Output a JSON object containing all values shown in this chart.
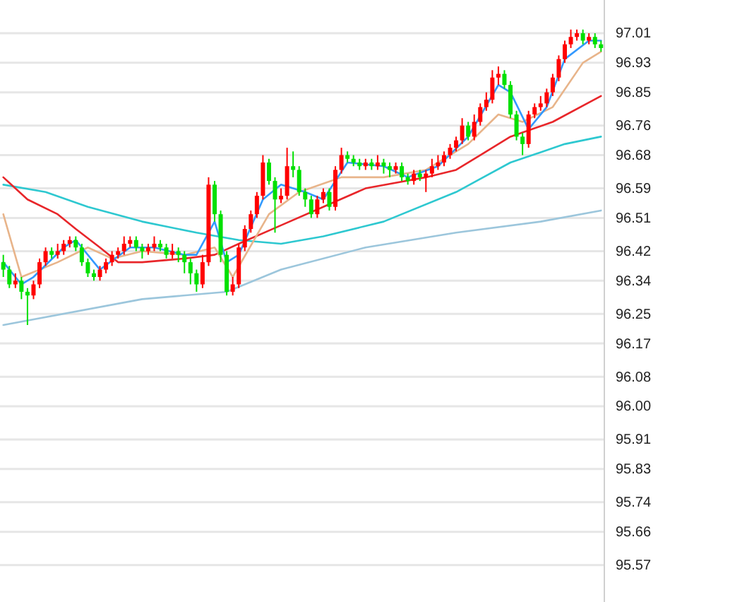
{
  "chart_data": {
    "type": "candlestick",
    "categories": [
      null,
      null,
      null,
      null,
      null,
      null,
      null,
      null,
      null,
      null,
      null,
      null,
      null,
      null,
      null,
      null,
      null,
      null,
      null,
      null,
      null,
      null,
      null,
      null,
      null,
      null,
      null,
      null,
      null,
      null,
      null,
      null,
      null,
      null,
      null,
      null,
      null,
      null,
      null,
      null,
      null,
      null,
      null,
      null,
      null,
      null,
      null,
      null,
      null,
      null,
      null,
      null,
      null,
      null,
      null,
      null,
      null,
      null,
      null,
      null,
      null,
      null,
      null,
      null,
      null,
      null,
      null,
      null,
      null,
      null,
      null,
      null,
      null,
      null,
      null,
      null,
      null,
      null,
      null,
      null,
      null,
      null,
      null,
      null,
      null,
      null,
      null,
      null,
      null,
      null,
      null,
      null,
      null,
      null,
      null,
      null,
      null,
      null,
      null,
      null
    ],
    "ohlc": [
      [
        96.39,
        96.41,
        96.35,
        96.37
      ],
      [
        96.37,
        96.38,
        96.32,
        96.33
      ],
      [
        96.33,
        96.36,
        96.32,
        96.34
      ],
      [
        96.34,
        96.35,
        96.29,
        96.31
      ],
      [
        96.31,
        96.32,
        96.22,
        96.3
      ],
      [
        96.3,
        96.34,
        96.29,
        96.33
      ],
      [
        96.33,
        96.4,
        96.32,
        96.39
      ],
      [
        96.39,
        96.43,
        96.38,
        96.42
      ],
      [
        96.42,
        96.43,
        96.4,
        96.41
      ],
      [
        96.41,
        96.44,
        96.4,
        96.42
      ],
      [
        96.42,
        96.45,
        96.41,
        96.44
      ],
      [
        96.44,
        96.46,
        96.43,
        96.45
      ],
      [
        96.45,
        96.46,
        96.42,
        96.43
      ],
      [
        96.43,
        96.44,
        96.38,
        96.39
      ],
      [
        96.39,
        96.4,
        96.35,
        96.36
      ],
      [
        96.36,
        96.37,
        96.34,
        96.35
      ],
      [
        96.35,
        96.38,
        96.34,
        96.37
      ],
      [
        96.37,
        96.4,
        96.36,
        96.39
      ],
      [
        96.39,
        96.42,
        96.38,
        96.41
      ],
      [
        96.41,
        96.43,
        96.4,
        96.42
      ],
      [
        96.42,
        96.46,
        96.41,
        96.44
      ],
      [
        96.44,
        96.46,
        96.43,
        96.45
      ],
      [
        96.45,
        96.46,
        96.42,
        96.43
      ],
      [
        96.43,
        96.44,
        96.4,
        96.42
      ],
      [
        96.42,
        96.44,
        96.41,
        96.43
      ],
      [
        96.43,
        96.46,
        96.42,
        96.44
      ],
      [
        96.44,
        96.45,
        96.42,
        96.43
      ],
      [
        96.43,
        96.44,
        96.4,
        96.41
      ],
      [
        96.41,
        96.44,
        96.4,
        96.42
      ],
      [
        96.42,
        96.43,
        96.39,
        96.41
      ],
      [
        96.41,
        96.42,
        96.36,
        96.39
      ],
      [
        96.39,
        96.4,
        96.33,
        96.36
      ],
      [
        96.36,
        96.37,
        96.31,
        96.33
      ],
      [
        96.33,
        96.41,
        96.32,
        96.39
      ],
      [
        96.39,
        96.62,
        96.38,
        96.6
      ],
      [
        96.6,
        96.61,
        96.5,
        96.52
      ],
      [
        96.52,
        96.53,
        96.39,
        96.41
      ],
      [
        96.41,
        96.42,
        96.3,
        96.31
      ],
      [
        96.31,
        96.35,
        96.3,
        96.33
      ],
      [
        96.33,
        96.44,
        96.32,
        96.43
      ],
      [
        96.43,
        96.49,
        96.42,
        96.48
      ],
      [
        96.48,
        96.53,
        96.47,
        96.52
      ],
      [
        96.52,
        96.58,
        96.51,
        96.57
      ],
      [
        96.57,
        96.68,
        96.56,
        96.66
      ],
      [
        96.66,
        96.67,
        96.6,
        96.61
      ],
      [
        96.61,
        96.62,
        96.47,
        96.56
      ],
      [
        96.56,
        96.59,
        96.55,
        96.57
      ],
      [
        96.57,
        96.7,
        96.56,
        96.65
      ],
      [
        96.65,
        96.69,
        96.62,
        96.64
      ],
      [
        96.64,
        96.65,
        96.57,
        96.58
      ],
      [
        96.58,
        96.59,
        96.54,
        96.56
      ],
      [
        96.56,
        96.57,
        96.51,
        96.52
      ],
      [
        96.52,
        96.57,
        96.51,
        96.56
      ],
      [
        96.56,
        96.59,
        96.55,
        96.58
      ],
      [
        96.58,
        96.59,
        96.53,
        96.54
      ],
      [
        96.54,
        96.65,
        96.53,
        96.64
      ],
      [
        96.64,
        96.7,
        96.63,
        96.68
      ],
      [
        96.68,
        96.69,
        96.66,
        96.67
      ],
      [
        96.67,
        96.68,
        96.65,
        96.66
      ],
      [
        96.66,
        96.67,
        96.64,
        96.65
      ],
      [
        96.65,
        96.67,
        96.64,
        96.66
      ],
      [
        96.66,
        96.67,
        96.64,
        96.65
      ],
      [
        96.65,
        96.68,
        96.64,
        96.66
      ],
      [
        96.66,
        96.67,
        96.63,
        96.65
      ],
      [
        96.65,
        96.66,
        96.62,
        96.64
      ],
      [
        96.64,
        96.66,
        96.63,
        96.65
      ],
      [
        96.65,
        96.66,
        96.61,
        96.62
      ],
      [
        96.62,
        96.63,
        96.6,
        96.61
      ],
      [
        96.61,
        96.64,
        96.6,
        96.63
      ],
      [
        96.63,
        96.64,
        96.61,
        96.62
      ],
      [
        96.62,
        96.64,
        96.58,
        96.63
      ],
      [
        96.63,
        96.67,
        96.62,
        96.65
      ],
      [
        96.65,
        96.68,
        96.64,
        96.66
      ],
      [
        96.66,
        96.69,
        96.65,
        96.68
      ],
      [
        96.68,
        96.71,
        96.67,
        96.7
      ],
      [
        96.7,
        96.73,
        96.69,
        96.72
      ],
      [
        96.72,
        96.78,
        96.71,
        96.76
      ],
      [
        96.76,
        96.77,
        96.72,
        96.73
      ],
      [
        96.73,
        96.79,
        96.72,
        96.77
      ],
      [
        96.77,
        96.82,
        96.76,
        96.81
      ],
      [
        96.81,
        96.85,
        96.8,
        96.83
      ],
      [
        96.83,
        96.91,
        96.82,
        96.89
      ],
      [
        96.89,
        96.92,
        96.87,
        96.9
      ],
      [
        96.9,
        96.91,
        96.86,
        96.87
      ],
      [
        96.87,
        96.88,
        96.78,
        96.79
      ],
      [
        96.79,
        96.8,
        96.72,
        96.73
      ],
      [
        96.73,
        96.74,
        96.68,
        96.71
      ],
      [
        96.71,
        96.8,
        96.7,
        96.79
      ],
      [
        96.79,
        96.82,
        96.78,
        96.81
      ],
      [
        96.81,
        96.84,
        96.8,
        96.82
      ],
      [
        96.82,
        96.86,
        96.81,
        96.85
      ],
      [
        96.85,
        96.9,
        96.84,
        96.89
      ],
      [
        96.89,
        96.95,
        96.88,
        96.94
      ],
      [
        96.94,
        96.99,
        96.93,
        96.98
      ],
      [
        96.98,
        97.02,
        96.97,
        97.0
      ],
      [
        97.0,
        97.02,
        96.99,
        97.01
      ],
      [
        97.01,
        97.02,
        96.98,
        96.99
      ],
      [
        96.99,
        97.01,
        96.98,
        97.0
      ],
      [
        97.0,
        97.01,
        96.97,
        96.98
      ],
      [
        96.98,
        96.99,
        96.96,
        96.97
      ]
    ],
    "series": [
      {
        "type": "line",
        "color": "#9cc6dc",
        "values": [
          96.22,
          null,
          null,
          null,
          null,
          null,
          null,
          null,
          null,
          null,
          null,
          null,
          null,
          null,
          null,
          null,
          null,
          null,
          null,
          null,
          null,
          null,
          null,
          96.29,
          null,
          null,
          null,
          null,
          null,
          null,
          null,
          null,
          null,
          null,
          null,
          null,
          null,
          96.31,
          null,
          null,
          null,
          null,
          null,
          null,
          null,
          null,
          96.37,
          null,
          null,
          null,
          null,
          null,
          null,
          null,
          null,
          null,
          null,
          null,
          null,
          null,
          96.43,
          null,
          null,
          null,
          null,
          null,
          null,
          null,
          null,
          null,
          null,
          null,
          null,
          null,
          null,
          96.47,
          null,
          null,
          null,
          null,
          null,
          null,
          null,
          null,
          null,
          null,
          null,
          null,
          null,
          96.5,
          null,
          null,
          null,
          null,
          null,
          null,
          null,
          null,
          null,
          96.53
        ]
      },
      {
        "type": "line",
        "color": "#2ec8d0",
        "values": [
          96.6,
          null,
          null,
          null,
          null,
          null,
          null,
          96.58,
          null,
          null,
          null,
          null,
          null,
          null,
          96.54,
          null,
          null,
          null,
          null,
          null,
          null,
          null,
          null,
          96.5,
          null,
          null,
          null,
          null,
          null,
          null,
          null,
          null,
          96.47,
          null,
          null,
          null,
          null,
          null,
          null,
          96.45,
          null,
          null,
          null,
          null,
          null,
          null,
          96.44,
          null,
          null,
          null,
          null,
          null,
          null,
          96.46,
          null,
          null,
          null,
          null,
          null,
          null,
          null,
          null,
          null,
          96.5,
          null,
          null,
          null,
          null,
          null,
          null,
          null,
          null,
          null,
          null,
          null,
          96.58,
          null,
          null,
          null,
          null,
          null,
          null,
          null,
          null,
          96.66,
          null,
          null,
          null,
          null,
          null,
          null,
          null,
          null,
          96.71,
          null,
          null,
          null,
          null,
          null,
          96.73
        ]
      },
      {
        "type": "line",
        "color": "#e8262a",
        "values": [
          96.62,
          null,
          null,
          null,
          96.56,
          null,
          null,
          null,
          null,
          96.52,
          null,
          null,
          96.48,
          null,
          null,
          null,
          96.43,
          null,
          null,
          96.39,
          null,
          null,
          null,
          96.39,
          null,
          null,
          null,
          null,
          null,
          null,
          96.4,
          null,
          null,
          null,
          null,
          96.41,
          null,
          null,
          null,
          96.44,
          null,
          null,
          null,
          null,
          null,
          null,
          96.49,
          null,
          null,
          null,
          null,
          null,
          null,
          96.54,
          null,
          null,
          null,
          null,
          null,
          null,
          96.59,
          null,
          null,
          null,
          null,
          null,
          null,
          null,
          null,
          null,
          96.62,
          null,
          null,
          null,
          null,
          96.64,
          null,
          null,
          null,
          96.68,
          null,
          null,
          null,
          null,
          96.73,
          null,
          null,
          null,
          null,
          null,
          null,
          96.77,
          null,
          null,
          null,
          null,
          null,
          null,
          null,
          96.84
        ]
      },
      {
        "type": "line",
        "color": "#e8b48a",
        "values": [
          96.52,
          null,
          null,
          96.35,
          null,
          null,
          null,
          null,
          null,
          96.39,
          null,
          null,
          null,
          null,
          96.43,
          null,
          null,
          null,
          96.4,
          null,
          null,
          null,
          null,
          96.42,
          null,
          null,
          null,
          null,
          null,
          null,
          96.41,
          null,
          null,
          null,
          null,
          96.43,
          null,
          null,
          96.35,
          null,
          null,
          null,
          null,
          null,
          96.52,
          null,
          null,
          null,
          null,
          96.58,
          null,
          null,
          null,
          null,
          null,
          null,
          96.62,
          null,
          null,
          null,
          null,
          null,
          null,
          96.62,
          null,
          null,
          null,
          null,
          null,
          null,
          96.64,
          null,
          null,
          null,
          null,
          null,
          null,
          96.71,
          null,
          null,
          null,
          null,
          96.79,
          null,
          null,
          null,
          96.77,
          null,
          null,
          null,
          null,
          96.81,
          null,
          null,
          null,
          null,
          96.93,
          null,
          null,
          96.96
        ]
      },
      {
        "type": "line",
        "color": "#3399ff",
        "values": [
          96.39,
          null,
          null,
          96.33,
          null,
          96.35,
          null,
          null,
          null,
          null,
          96.43,
          null,
          96.45,
          null,
          null,
          null,
          96.37,
          null,
          null,
          null,
          null,
          96.43,
          null,
          null,
          null,
          96.43,
          null,
          null,
          null,
          null,
          96.41,
          null,
          96.41,
          null,
          null,
          96.5,
          null,
          96.39,
          null,
          96.41,
          null,
          null,
          null,
          96.56,
          null,
          null,
          96.6,
          null,
          null,
          null,
          96.58,
          null,
          null,
          96.56,
          null,
          null,
          null,
          96.66,
          null,
          null,
          null,
          null,
          null,
          96.65,
          null,
          null,
          null,
          96.62,
          null,
          null,
          null,
          null,
          96.65,
          null,
          null,
          null,
          null,
          96.73,
          null,
          null,
          null,
          null,
          96.87,
          null,
          96.85,
          null,
          null,
          96.75,
          null,
          null,
          96.81,
          null,
          null,
          96.94,
          null,
          null,
          null,
          96.99,
          null,
          96.99
        ]
      }
    ],
    "ylim": [
      95.47,
      97.1
    ],
    "yticks": [
      97.01,
      96.93,
      96.85,
      96.76,
      96.68,
      96.59,
      96.51,
      96.42,
      96.34,
      96.25,
      96.17,
      96.08,
      {
        "value": 96.0,
        "label": "96.00"
      },
      95.91,
      95.83,
      95.74,
      95.66,
      95.57
    ],
    "tick_labels": "y",
    "grid": "y"
  }
}
